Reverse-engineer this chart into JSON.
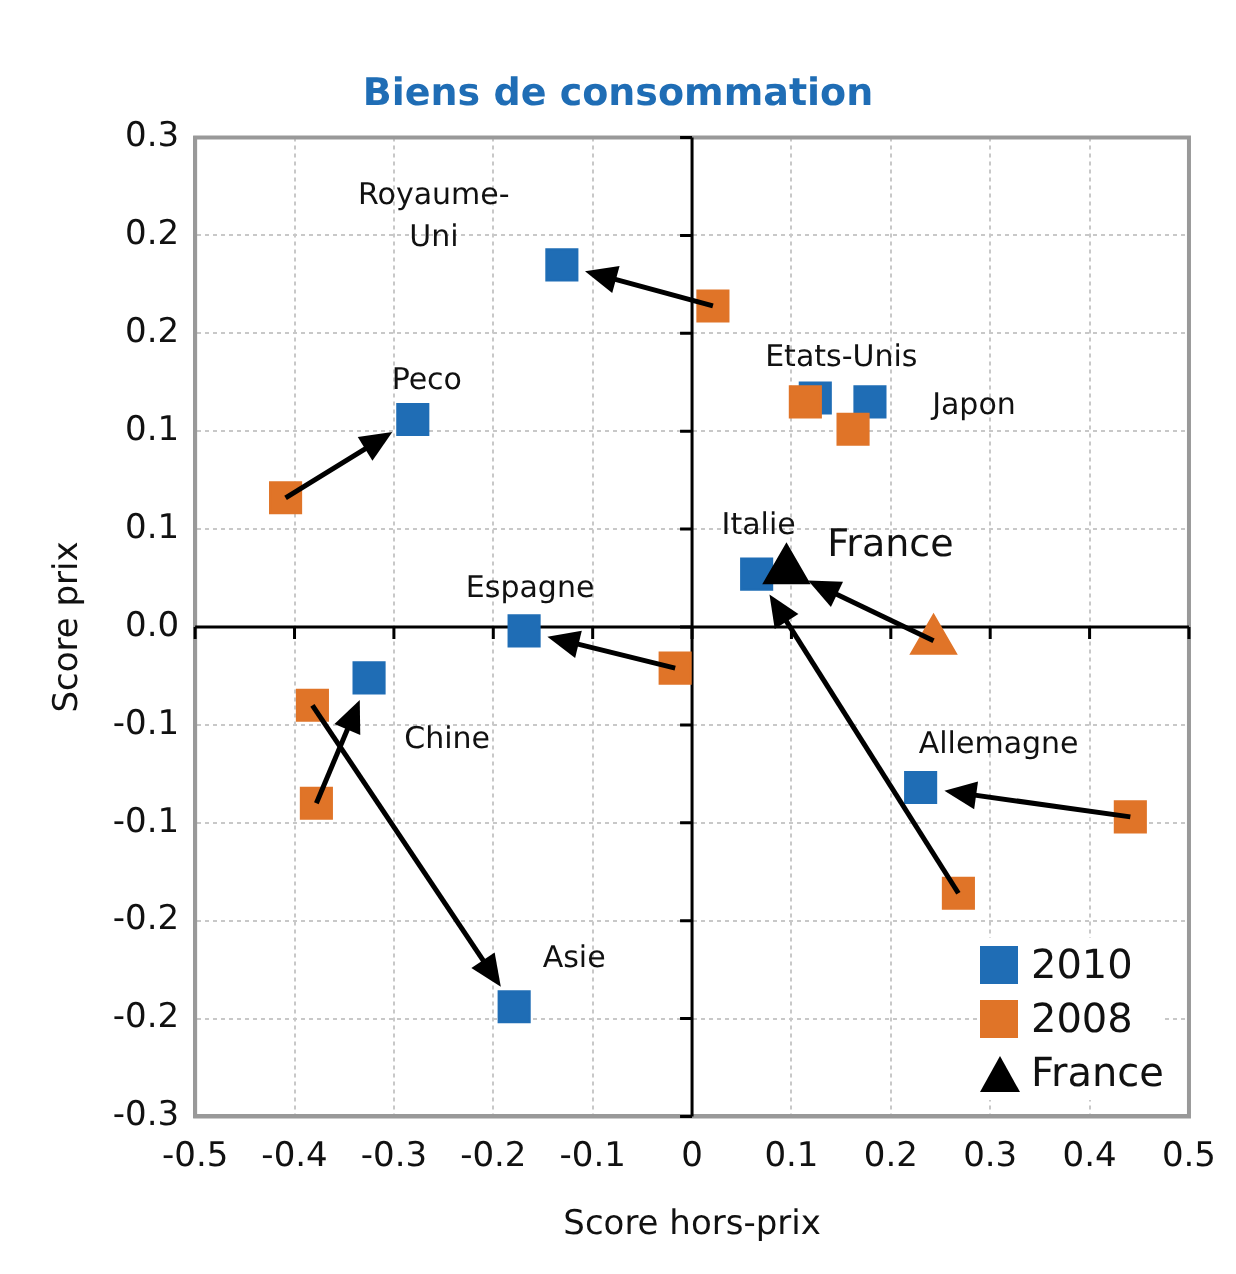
{
  "chart_data": {
    "type": "scatter",
    "title": "Biens de consommation",
    "xlabel": "Score hors-prix",
    "ylabel": "Score prix",
    "xlim": [
      -0.5,
      0.5
    ],
    "xticks": [
      -0.5,
      -0.4,
      -0.3,
      -0.2,
      -0.1,
      0,
      0.1,
      0.2,
      0.3,
      0.4,
      0.5
    ],
    "ylim": [
      -0.25,
      0.25
    ],
    "yticks": [
      {
        "value": 0.25,
        "label": "0.3"
      },
      0.2,
      {
        "value": 0.15,
        "label": "0.2"
      },
      0.1,
      {
        "value": 0.05,
        "label": "0.1"
      },
      {
        "value": 0,
        "label": "0.0"
      },
      {
        "value": -0.05,
        "label": "-0.1"
      },
      -0.1,
      {
        "value": -0.15,
        "label": "-0.2"
      },
      -0.2,
      {
        "value": -0.25,
        "label": "-0.3"
      }
    ],
    "grid": true,
    "legend": "bottom right",
    "series": [
      {
        "name": "2010",
        "color": "#1f6db5",
        "marker": "square",
        "x": [
          -0.131,
          -0.281,
          0.124,
          0.179,
          0.065,
          -0.169,
          -0.325,
          -0.179,
          0.23
        ],
        "values": [
          0.185,
          0.106,
          0.117,
          0.115,
          0.027,
          -0.002,
          -0.026,
          -0.194,
          -0.082
        ]
      },
      {
        "name": "2008",
        "color": "#e07428",
        "marker": "square",
        "x": [
          0.021,
          -0.409,
          0.114,
          0.162,
          0.268,
          -0.017,
          -0.378,
          -0.382,
          0.441
        ],
        "values": [
          0.164,
          0.066,
          0.115,
          0.101,
          -0.136,
          -0.021,
          -0.09,
          -0.04,
          -0.097
        ]
      },
      {
        "name": "France",
        "colors": [
          "#000000",
          "#e07428"
        ],
        "marker": "triangle",
        "x": [
          0.095,
          0.243
        ],
        "values": [
          0.029,
          -0.007
        ]
      }
    ],
    "annotations": [
      {
        "text": "Royaume-Uni",
        "x": -0.131,
        "y": 0.185
      },
      {
        "text": "Peco",
        "x": -0.281,
        "y": 0.106
      },
      {
        "text": "Etats-Unis",
        "x": 0.124,
        "y": 0.117
      },
      {
        "text": "Japon",
        "x": 0.179,
        "y": 0.115
      },
      {
        "text": "Italie",
        "x": 0.065,
        "y": 0.027
      },
      {
        "text": "France",
        "x": 0.095,
        "y": 0.029
      },
      {
        "text": "Espagne",
        "x": -0.169,
        "y": -0.002
      },
      {
        "text": "Chine",
        "x": -0.325,
        "y": -0.026
      },
      {
        "text": "Allemagne",
        "x": 0.23,
        "y": -0.082
      },
      {
        "text": "Asie",
        "x": -0.179,
        "y": -0.194
      }
    ]
  }
}
